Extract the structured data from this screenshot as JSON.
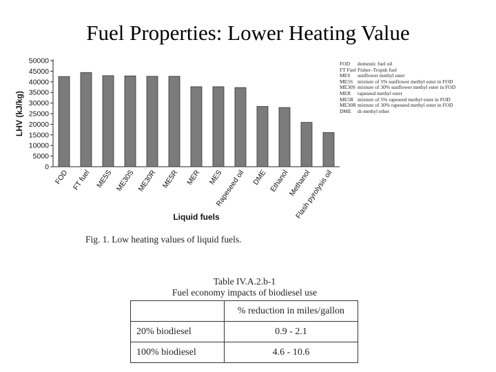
{
  "slide": {
    "title": "Fuel Properties: Lower Heating Value"
  },
  "figure": {
    "caption": "Fig. 1. Low heating values of liquid fuels."
  },
  "chart_data": {
    "type": "bar",
    "categories": [
      "FOD",
      "FT fuel",
      "ME5S",
      "ME30S",
      "ME30R",
      "ME5R",
      "MER",
      "MES",
      "Rapeseed oil",
      "DME",
      "Ethanol",
      "Methanol",
      "Flash pyrolysis oil"
    ],
    "values": [
      42500,
      44400,
      42900,
      42800,
      42600,
      42600,
      37700,
      37700,
      37300,
      28400,
      27900,
      20900,
      16100
    ],
    "ylabel": "LHV (kJ/kg)",
    "xlabel": "Liquid fuels",
    "ylim": [
      0,
      50000
    ],
    "yticks": [
      0,
      5000,
      10000,
      15000,
      20000,
      25000,
      30000,
      35000,
      40000,
      45000,
      50000
    ],
    "bar_color": "#7b7b7b",
    "legend": [
      {
        "abbr": "FOD",
        "desc": "domestic fuel oil"
      },
      {
        "abbr": "FT Fuel",
        "desc": "Fisher–Tropsh fuel"
      },
      {
        "abbr": "MES",
        "desc": "sunflower methyl ester"
      },
      {
        "abbr": "ME5S",
        "desc": "mixture of 5% sunflower methyl ester in FOD"
      },
      {
        "abbr": "ME30S",
        "desc": "mixture of 30% sunflower methyl ester in FOD"
      },
      {
        "abbr": "MER",
        "desc": "rapeseed methyl ester"
      },
      {
        "abbr": "ME5R",
        "desc": "mixture of 5% rapeseed methyl ester in FOD"
      },
      {
        "abbr": "ME30R",
        "desc": "mixture of 30% rapeseed methyl ester in FOD"
      },
      {
        "abbr": "DME",
        "desc": "di-methyl ether"
      }
    ]
  },
  "table": {
    "title_line1": "Table IV.A.2.b-1",
    "title_line2": "Fuel economy impacts of biodiesel use",
    "column_header": "% reduction in miles/gallon",
    "rows": [
      {
        "label": "20% biodiesel",
        "value": "0.9 - 2.1"
      },
      {
        "label": "100% biodiesel",
        "value": "4.6 - 10.6"
      }
    ]
  }
}
